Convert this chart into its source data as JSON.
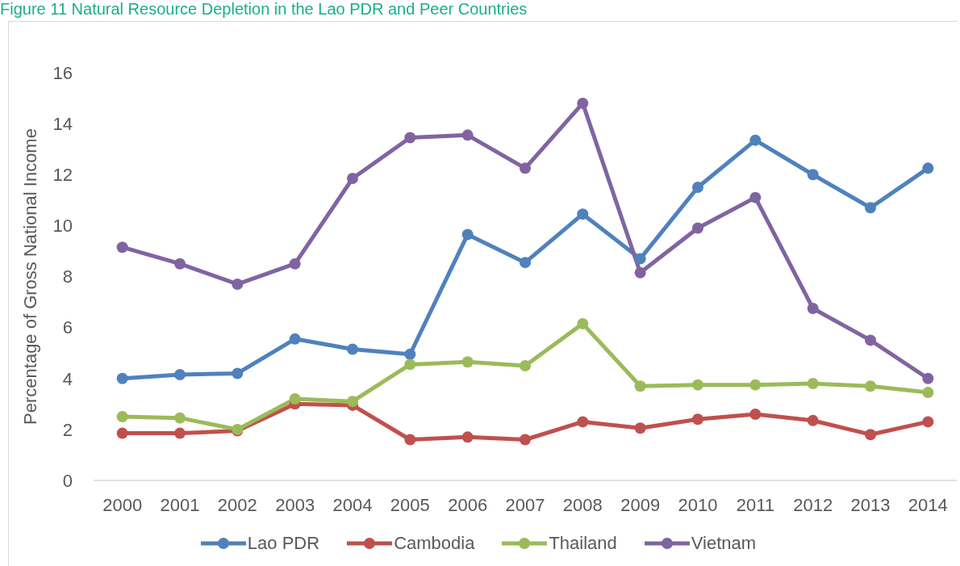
{
  "chart_data": {
    "type": "line",
    "title": "Figure 11 Natural Resource Depletion in the Lao PDR and Peer Countries",
    "ylabel": "Percentage of Gross National Income",
    "categories": [
      "2000",
      "2001",
      "2002",
      "2003",
      "2004",
      "2005",
      "2006",
      "2007",
      "2008",
      "2009",
      "2010",
      "2011",
      "2012",
      "2013",
      "2014"
    ],
    "series": [
      {
        "name": "Lao PDR",
        "color": "#4f81bd",
        "values": [
          4.0,
          4.15,
          4.2,
          5.55,
          5.15,
          4.95,
          9.65,
          8.55,
          10.45,
          8.7,
          11.5,
          13.35,
          12.0,
          10.7,
          12.25
        ]
      },
      {
        "name": "Cambodia",
        "color": "#c0504d",
        "values": [
          1.85,
          1.85,
          1.95,
          3.0,
          2.95,
          1.6,
          1.7,
          1.6,
          2.3,
          2.05,
          2.4,
          2.6,
          2.35,
          1.8,
          2.3
        ]
      },
      {
        "name": "Thailand",
        "color": "#9bbb59",
        "values": [
          2.5,
          2.45,
          2.0,
          3.2,
          3.1,
          4.55,
          4.65,
          4.5,
          6.15,
          3.7,
          3.75,
          3.75,
          3.8,
          3.7,
          3.45
        ]
      },
      {
        "name": "Vietnam",
        "color": "#8064a2",
        "values": [
          9.15,
          8.5,
          7.7,
          8.5,
          11.85,
          13.45,
          13.55,
          12.25,
          14.8,
          8.15,
          9.9,
          11.1,
          6.75,
          5.5,
          4.0
        ]
      }
    ],
    "ylim": [
      0,
      16
    ],
    "yticks": [
      0,
      2,
      4,
      6,
      8,
      10,
      12,
      14,
      16
    ],
    "legend": "bottom",
    "marker": "circle",
    "line_style": "solid"
  }
}
